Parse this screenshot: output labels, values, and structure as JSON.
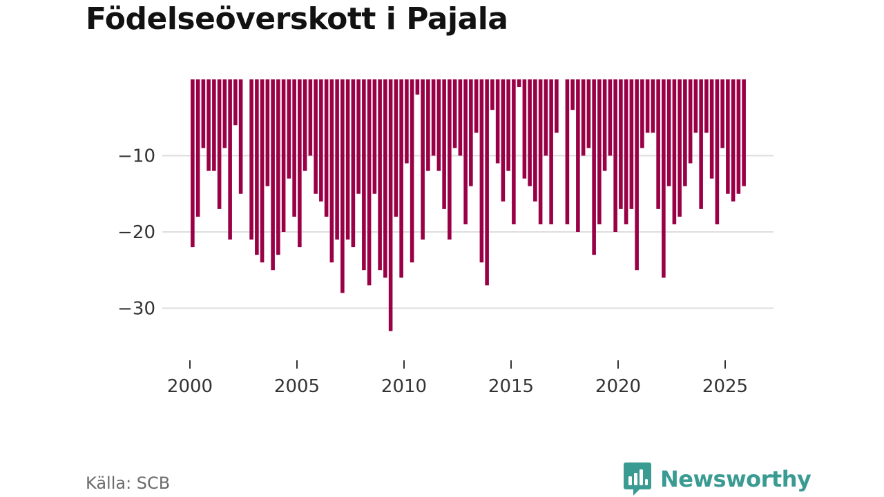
{
  "title": "Födelseöverskott i Pajala",
  "source": "Källa: SCB",
  "brand": {
    "name": "Newsworthy",
    "icon": "newsworthy-logo-icon",
    "color": "#3a9b93"
  },
  "colors": {
    "bar": "#990045",
    "grid": "#dddddd",
    "axis_tick": "#333333"
  },
  "chart_data": {
    "type": "bar",
    "title": "Födelseöverskott i Pajala",
    "xlabel": "",
    "ylabel": "",
    "frequency": "quarterly",
    "xlim": [
      2000,
      2026
    ],
    "ylim": [
      -37,
      0
    ],
    "x_ticks": [
      2000,
      2005,
      2010,
      2015,
      2020,
      2025
    ],
    "x_tick_labels": [
      "2000",
      "2005",
      "2010",
      "2015",
      "2020",
      "2025"
    ],
    "y_ticks": [
      -10,
      -20,
      -30
    ],
    "y_tick_labels": [
      "−10",
      "−20",
      "−30"
    ],
    "grid": true,
    "x": [
      2000.25,
      2000.5,
      2000.75,
      2001.0,
      2001.25,
      2001.5,
      2001.75,
      2002.0,
      2002.25,
      2002.5,
      2002.75,
      2003.0,
      2003.25,
      2003.5,
      2003.75,
      2004.0,
      2004.25,
      2004.5,
      2004.75,
      2005.0,
      2005.25,
      2005.5,
      2005.75,
      2006.0,
      2006.25,
      2006.5,
      2006.75,
      2007.0,
      2007.25,
      2007.5,
      2007.75,
      2008.0,
      2008.25,
      2008.5,
      2008.75,
      2009.0,
      2009.25,
      2009.5,
      2009.75,
      2010.0,
      2010.25,
      2010.5,
      2010.75,
      2011.0,
      2011.25,
      2011.5,
      2011.75,
      2012.0,
      2012.25,
      2012.5,
      2012.75,
      2013.0,
      2013.25,
      2013.5,
      2013.75,
      2014.0,
      2014.25,
      2014.5,
      2014.75,
      2015.0,
      2015.25,
      2015.5,
      2015.75,
      2016.0,
      2016.25,
      2016.5,
      2016.75,
      2017.0,
      2017.25,
      2017.5,
      2017.75,
      2018.0,
      2018.25,
      2018.5,
      2018.75,
      2019.0,
      2019.25,
      2019.5,
      2019.75,
      2020.0,
      2020.25,
      2020.5,
      2020.75,
      2021.0,
      2021.25,
      2021.5,
      2021.75,
      2022.0,
      2022.25,
      2022.5,
      2022.75,
      2023.0,
      2023.25,
      2023.5,
      2023.75,
      2024.0,
      2024.25,
      2024.5,
      2024.75,
      2025.0,
      2025.25,
      2025.5,
      2025.75,
      2026.0
    ],
    "values": [
      -22,
      -18,
      -9,
      -12,
      -12,
      -17,
      -9,
      -21,
      -6,
      -15,
      0,
      -21,
      -23,
      -24,
      -14,
      -25,
      -23,
      -20,
      -13,
      -18,
      -22,
      -12,
      -10,
      -15,
      -16,
      -18,
      -24,
      -21,
      -28,
      -21,
      -22,
      -15,
      -25,
      -27,
      -15,
      -25,
      -26,
      -33,
      -18,
      -26,
      -11,
      -24,
      -2,
      -21,
      -12,
      -10,
      -12,
      -17,
      -21,
      -9,
      -10,
      -19,
      -14,
      -7,
      -24,
      -27,
      -4,
      -11,
      -16,
      -12,
      -19,
      -1,
      -13,
      -14,
      -16,
      -19,
      -10,
      -19,
      -7,
      0,
      -19,
      -4,
      -20,
      -10,
      -9,
      -23,
      -19,
      -12,
      -10,
      -20,
      -17,
      -19,
      -17,
      -25,
      -9,
      -7,
      -7,
      -17,
      -26,
      -14,
      -19,
      -18,
      -14,
      -11,
      -7,
      -17,
      -7,
      -13,
      -19,
      -9,
      -15,
      -16,
      -15,
      -14
    ]
  }
}
